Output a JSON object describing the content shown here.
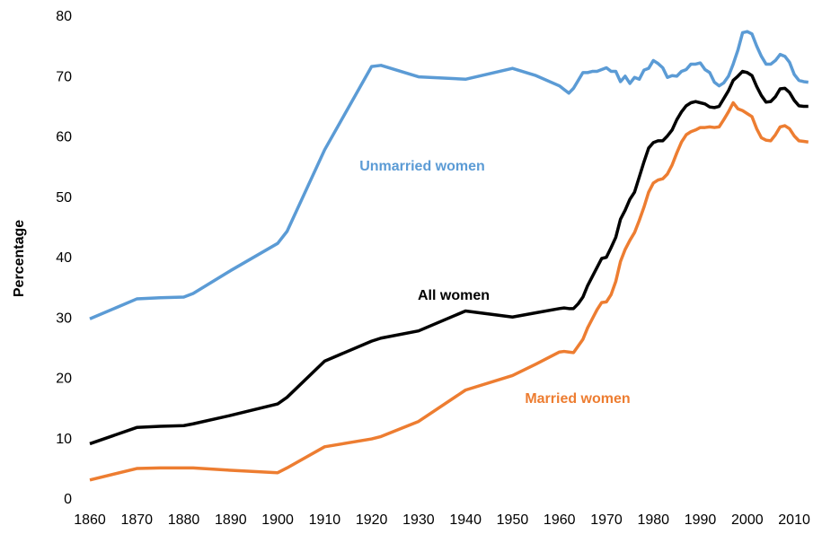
{
  "chart_data": {
    "type": "line",
    "ylabel": "Percentage",
    "x": [
      1860,
      1870,
      1875,
      1880,
      1882,
      1890,
      1900,
      1902,
      1910,
      1920,
      1922,
      1930,
      1940,
      1950,
      1955,
      1960,
      1961,
      1962,
      1963,
      1964,
      1965,
      1966,
      1967,
      1968,
      1969,
      1970,
      1971,
      1972,
      1973,
      1974,
      1975,
      1976,
      1977,
      1978,
      1979,
      1980,
      1981,
      1982,
      1983,
      1984,
      1985,
      1986,
      1987,
      1988,
      1989,
      1990,
      1991,
      1992,
      1993,
      1994,
      1995,
      1996,
      1997,
      1998,
      1999,
      2000,
      2001,
      2002,
      2003,
      2004,
      2005,
      2006,
      2007,
      2008,
      2009,
      2010,
      2011,
      2012,
      2013
    ],
    "series": [
      {
        "name": "Unmarried women",
        "color": "#5b9bd5",
        "values": [
          30,
          33.3,
          33.5,
          33.6,
          34.2,
          38,
          42.5,
          44.5,
          58,
          71.8,
          72,
          70.1,
          69.7,
          71.5,
          70.3,
          68.6,
          68,
          67.4,
          68.2,
          69.5,
          70.8,
          70.8,
          71,
          71,
          71.3,
          71.6,
          71,
          71,
          69.3,
          70.2,
          69,
          70,
          69.7,
          71.2,
          71.5,
          72.8,
          72.3,
          71.6,
          70,
          70.3,
          70.2,
          71,
          71.3,
          72.2,
          72.2,
          72.4,
          71.3,
          70.8,
          69.2,
          68.6,
          69.1,
          70.2,
          72.2,
          74.5,
          77.4,
          77.6,
          77.2,
          75.2,
          73.5,
          72.2,
          72.2,
          72.8,
          73.8,
          73.5,
          72.5,
          70.5,
          69.5,
          69.3,
          69.2
        ]
      },
      {
        "name": "All women",
        "color": "#000000",
        "values": [
          9.3,
          12,
          12.2,
          12.3,
          12.6,
          14,
          15.9,
          17,
          23,
          26.3,
          26.8,
          28,
          31.3,
          30.3,
          31,
          31.7,
          31.8,
          31.7,
          31.7,
          32.5,
          33.6,
          35.5,
          37,
          38.5,
          40,
          40.2,
          41.8,
          43.5,
          46.5,
          48,
          49.8,
          51,
          53.5,
          56,
          58.3,
          59.2,
          59.5,
          59.5,
          60.3,
          61.3,
          63,
          64.3,
          65.3,
          65.8,
          66,
          65.8,
          65.6,
          65.1,
          65,
          65.2,
          66.5,
          67.8,
          69.5,
          70.2,
          71,
          70.8,
          70.3,
          68.5,
          67,
          65.9,
          66,
          66.8,
          68.1,
          68.2,
          67.5,
          66.2,
          65.3,
          65.2,
          65.2
        ]
      },
      {
        "name": "Married women",
        "color": "#ed7d31",
        "values": [
          3.3,
          5.2,
          5.3,
          5.3,
          5.3,
          4.9,
          4.5,
          5.3,
          8.8,
          10.1,
          10.5,
          13,
          18.2,
          20.6,
          22.5,
          24.5,
          24.6,
          24.5,
          24.4,
          25.5,
          26.6,
          28.5,
          30,
          31.5,
          32.7,
          32.8,
          34,
          36.2,
          39.5,
          41.5,
          43,
          44.3,
          46.3,
          48.5,
          51,
          52.5,
          53,
          53.2,
          54,
          55.5,
          57.5,
          59.3,
          60.5,
          61,
          61.3,
          61.7,
          61.7,
          61.8,
          61.7,
          61.8,
          63,
          64.3,
          65.8,
          64.8,
          64.5,
          64,
          63.5,
          61.5,
          60,
          59.6,
          59.5,
          60.5,
          61.8,
          62,
          61.5,
          60.3,
          59.5,
          59.4,
          59.3
        ]
      }
    ],
    "xlim": [
      1860,
      2014
    ],
    "xticks": [
      1860,
      1870,
      1880,
      1890,
      1900,
      1910,
      1920,
      1930,
      1940,
      1950,
      1960,
      1970,
      1980,
      1990,
      2000,
      2010
    ],
    "ylim": [
      0,
      80
    ],
    "yticks": [
      0,
      10,
      20,
      30,
      40,
      50,
      60,
      70,
      80
    ],
    "grid": false
  }
}
